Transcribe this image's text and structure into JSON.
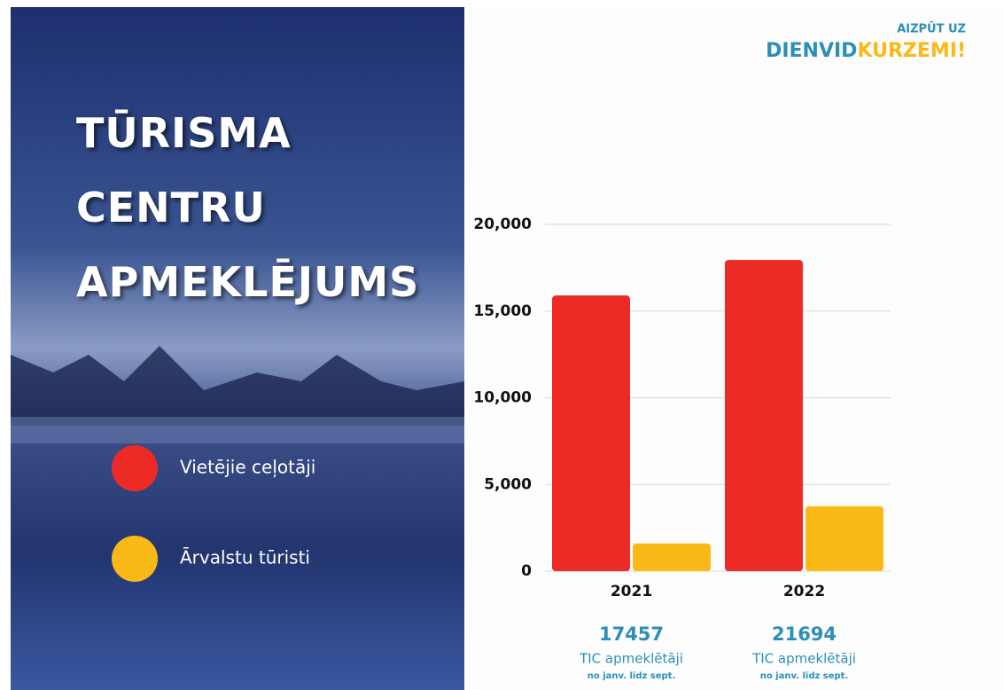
{
  "chart_data": {
    "type": "bar",
    "title": "TŪRISMA CENTRU APMEKLĒJUMS",
    "logo": {
      "top": "AIZPŪT UZ",
      "left": "DIENVID",
      "right": "KURZEMI!"
    },
    "categories": [
      "2021",
      "2022"
    ],
    "series": [
      {
        "name": "Vietējie ceļotāji",
        "color": "#ec2a26",
        "values": [
          15900,
          17950
        ]
      },
      {
        "name": "Ārvalstu tūristi",
        "color": "#fbb918",
        "values": [
          1600,
          3750
        ]
      }
    ],
    "ylim": [
      0,
      20000
    ],
    "yticks": [
      0,
      {
        "value": 5000,
        "label": "5,000"
      },
      {
        "value": 10000,
        "label": "10,000"
      },
      {
        "value": 15000,
        "label": "15,000"
      },
      {
        "value": 20000,
        "label": "20,000"
      }
    ],
    "grid": true,
    "notes": [
      {
        "total": 17457,
        "label": "TIC apmeklētāji",
        "period": "no janv. līdz sept."
      },
      {
        "total": 21694,
        "label": "TIC apmeklētāji",
        "period": "no janv. līdz sept."
      }
    ]
  }
}
